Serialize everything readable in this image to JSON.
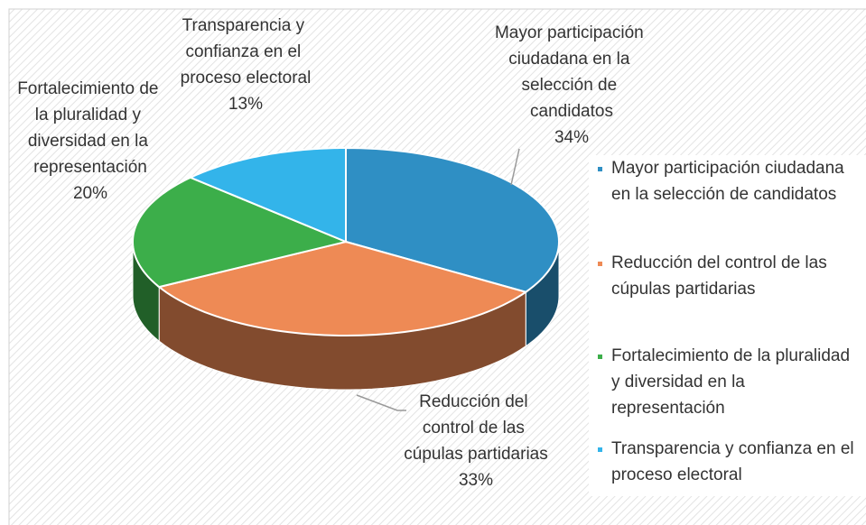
{
  "chart_data": {
    "type": "pie3d",
    "categories": [
      "Mayor participación ciudadana en la selección de candidatos",
      "Reducción del control de las cúpulas partidarias",
      "Fortalecimiento de la pluralidad y diversidad en la representación",
      "Transparencia y confianza en el proceso electoral"
    ],
    "values": [
      34,
      33,
      20,
      13
    ],
    "value_labels": [
      "34%",
      "33%",
      "20%",
      "13%"
    ],
    "colors": [
      "#2f8fc4",
      "#ee8a55",
      "#3cae4a",
      "#33b4ea"
    ],
    "legend": "right"
  }
}
